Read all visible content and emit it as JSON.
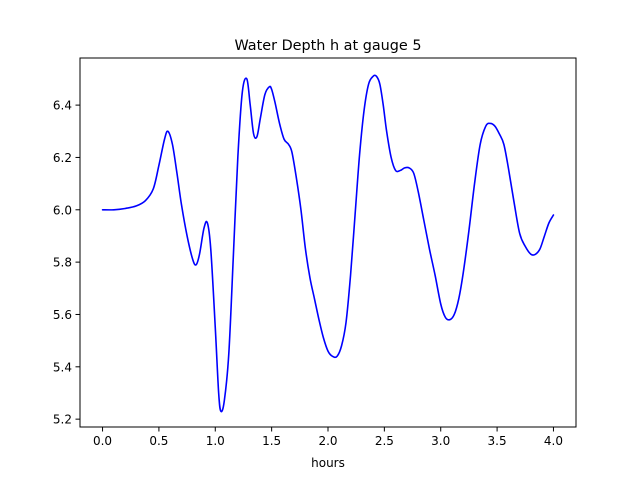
{
  "chart_data": {
    "type": "line",
    "title": "Water Depth h at gauge 5",
    "xlabel": "hours",
    "ylabel": "",
    "xlim": [
      -0.2,
      4.2
    ],
    "ylim": [
      5.17,
      6.58
    ],
    "xticks": [
      0.0,
      0.5,
      1.0,
      1.5,
      2.0,
      2.5,
      3.0,
      3.5,
      4.0
    ],
    "xtick_labels": [
      "0.0",
      "0.5",
      "1.0",
      "1.5",
      "2.0",
      "2.5",
      "3.0",
      "3.5",
      "4.0"
    ],
    "yticks": [
      5.2,
      5.4,
      5.6,
      5.8,
      6.0,
      6.2,
      6.4
    ],
    "ytick_labels": [
      "5.2",
      "5.4",
      "5.6",
      "5.8",
      "6.0",
      "6.2",
      "6.4"
    ],
    "grid": false,
    "series": [
      {
        "color": "#0000ff",
        "x": [
          0.0,
          0.1,
          0.2,
          0.3,
          0.38,
          0.45,
          0.5,
          0.55,
          0.58,
          0.62,
          0.66,
          0.7,
          0.75,
          0.8,
          0.83,
          0.86,
          0.9,
          0.93,
          0.96,
          1.0,
          1.03,
          1.05,
          1.08,
          1.12,
          1.16,
          1.2,
          1.24,
          1.28,
          1.31,
          1.34,
          1.37,
          1.4,
          1.44,
          1.48,
          1.5,
          1.53,
          1.57,
          1.61,
          1.65,
          1.68,
          1.72,
          1.76,
          1.8,
          1.84,
          1.88,
          1.92,
          1.96,
          2.0,
          2.04,
          2.08,
          2.12,
          2.16,
          2.2,
          2.24,
          2.28,
          2.32,
          2.36,
          2.4,
          2.43,
          2.46,
          2.49,
          2.52,
          2.56,
          2.6,
          2.64,
          2.68,
          2.72,
          2.76,
          2.8,
          2.85,
          2.9,
          2.95,
          3.0,
          3.04,
          3.08,
          3.12,
          3.16,
          3.2,
          3.25,
          3.3,
          3.35,
          3.4,
          3.44,
          3.48,
          3.52,
          3.56,
          3.6,
          3.65,
          3.7,
          3.75,
          3.8,
          3.84,
          3.88,
          3.92,
          3.96,
          4.0
        ],
        "y": [
          6.0,
          6.0,
          6.005,
          6.015,
          6.035,
          6.08,
          6.17,
          6.27,
          6.3,
          6.25,
          6.14,
          6.02,
          5.9,
          5.81,
          5.79,
          5.83,
          5.93,
          5.95,
          5.85,
          5.55,
          5.3,
          5.23,
          5.27,
          5.45,
          5.82,
          6.2,
          6.45,
          6.5,
          6.4,
          6.29,
          6.28,
          6.35,
          6.44,
          6.47,
          6.46,
          6.41,
          6.33,
          6.27,
          6.25,
          6.22,
          6.12,
          6.0,
          5.85,
          5.74,
          5.66,
          5.58,
          5.51,
          5.46,
          5.44,
          5.44,
          5.48,
          5.57,
          5.75,
          5.98,
          6.21,
          6.38,
          6.48,
          6.51,
          6.51,
          6.48,
          6.4,
          6.3,
          6.2,
          6.15,
          6.15,
          6.16,
          6.16,
          6.14,
          6.07,
          5.96,
          5.85,
          5.75,
          5.64,
          5.59,
          5.58,
          5.6,
          5.66,
          5.76,
          5.92,
          6.1,
          6.25,
          6.32,
          6.33,
          6.32,
          6.29,
          6.25,
          6.16,
          6.03,
          5.91,
          5.86,
          5.83,
          5.83,
          5.85,
          5.9,
          5.95,
          5.98
        ]
      }
    ]
  }
}
